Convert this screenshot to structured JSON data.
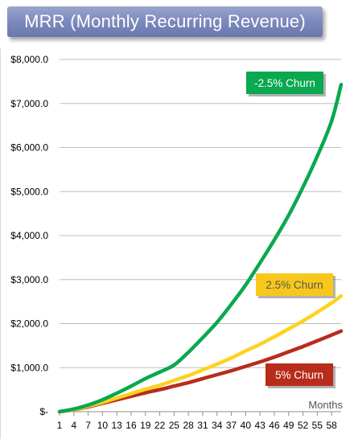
{
  "chart_data": {
    "type": "line",
    "title": "MRR (Monthly Recurring Revenue)",
    "xlabel": "Months",
    "ylabel": "",
    "ylim": [
      0,
      8000
    ],
    "xlim": [
      1,
      60
    ],
    "y_ticks": [
      {
        "value": 0,
        "label": "$-"
      },
      {
        "value": 1000,
        "label": "$1,000.0"
      },
      {
        "value": 2000,
        "label": "$2,000.0"
      },
      {
        "value": 3000,
        "label": "$3,000.0"
      },
      {
        "value": 4000,
        "label": "$4,000.0"
      },
      {
        "value": 5000,
        "label": "$5,000.0"
      },
      {
        "value": 6000,
        "label": "$6,000.0"
      },
      {
        "value": 7000,
        "label": "$7,000.0"
      },
      {
        "value": 8000,
        "label": "$8,000.0"
      }
    ],
    "x_ticks": [
      "1",
      "4",
      "7",
      "10",
      "13",
      "16",
      "19",
      "22",
      "25",
      "28",
      "31",
      "34",
      "37",
      "40",
      "43",
      "46",
      "49",
      "52",
      "55",
      "58"
    ],
    "grid": "horizontal",
    "series": [
      {
        "name": "-2.5% Churn",
        "color": "#0aa84f",
        "label_color": "#0aa84f",
        "label_text_color": "#ffffff",
        "x": [
          1,
          4,
          7,
          10,
          13,
          16,
          19,
          22,
          25,
          28,
          31,
          34,
          37,
          40,
          43,
          46,
          49,
          52,
          55,
          58,
          60
        ],
        "values": [
          0,
          60,
          150,
          270,
          420,
          580,
          750,
          900,
          1060,
          1350,
          1680,
          2030,
          2440,
          2880,
          3380,
          3900,
          4460,
          5100,
          5800,
          6600,
          7430
        ]
      },
      {
        "name": "2.5% Churn",
        "color": "#ffd21e",
        "label_color": "#f7c81b",
        "label_text_color": "#555555",
        "x": [
          1,
          4,
          7,
          10,
          13,
          16,
          19,
          22,
          25,
          28,
          31,
          34,
          37,
          40,
          43,
          46,
          49,
          52,
          55,
          58,
          60
        ],
        "values": [
          0,
          45,
          125,
          210,
          310,
          410,
          510,
          600,
          710,
          820,
          950,
          1080,
          1220,
          1380,
          1530,
          1700,
          1880,
          2060,
          2260,
          2470,
          2630
        ]
      },
      {
        "name": "5% Churn",
        "color": "#b82c1c",
        "label_color": "#b82c1c",
        "label_text_color": "#ffffff",
        "x": [
          1,
          4,
          7,
          10,
          13,
          16,
          19,
          22,
          25,
          28,
          31,
          34,
          37,
          40,
          43,
          46,
          49,
          52,
          55,
          58,
          60
        ],
        "values": [
          0,
          40,
          110,
          190,
          270,
          350,
          430,
          500,
          580,
          660,
          750,
          840,
          930,
          1030,
          1130,
          1240,
          1360,
          1480,
          1610,
          1740,
          1830
        ]
      }
    ]
  }
}
